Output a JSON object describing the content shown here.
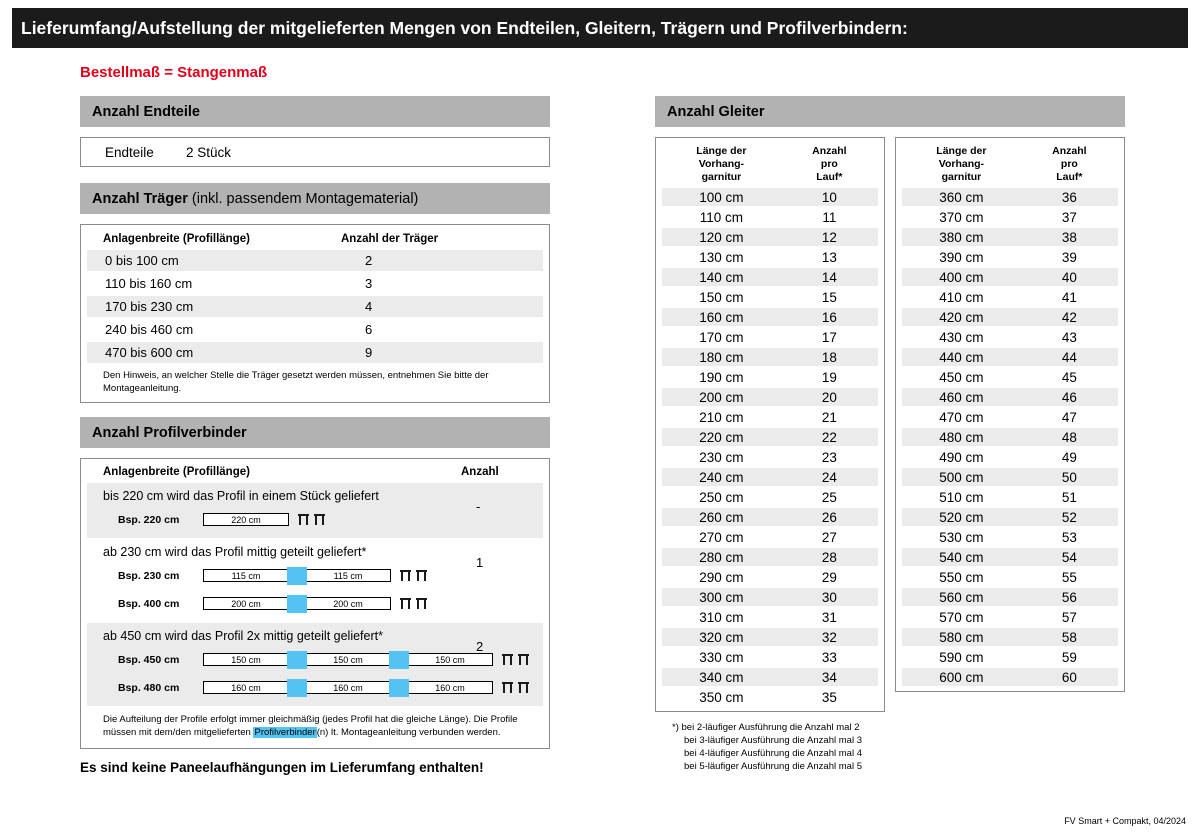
{
  "header": {
    "title": "Lieferumfang/Aufstellung der mitgelieferten Mengen von Endteilen, Gleitern, Trägern und Profilverbindern:"
  },
  "subtitle": "Bestellmaß = Stangenmaß",
  "colors": {
    "accent_red": "#e2001a",
    "section_bar_gray": "#b2b2b2",
    "stripe_gray": "#ebebeb",
    "connector_blue": "#54c3f1",
    "header_black": "#1b1b1b"
  },
  "endteile": {
    "section_title": "Anzahl Endteile",
    "label": "Endteile",
    "value": "2 Stück"
  },
  "traeger": {
    "title_bold": "Anzahl Träger",
    "title_rest": " (inkl. passendem Montagematerial)",
    "col_width": "Anlagenbreite (Profillänge)",
    "col_count": "Anzahl der Träger",
    "rows": [
      {
        "range": "0 bis 100 cm",
        "count": "2"
      },
      {
        "range": "110 bis 160 cm",
        "count": "3"
      },
      {
        "range": "170 bis 230 cm",
        "count": "4"
      },
      {
        "range": "240 bis 460 cm",
        "count": "6"
      },
      {
        "range": "470 bis 600 cm",
        "count": "9"
      }
    ],
    "note": "Den Hinweis, an welcher Stelle die Träger gesetzt werden müssen, entnehmen Sie bitte der Montageanleitung."
  },
  "profilverbinder": {
    "title": "Anzahl Profilverbinder",
    "col_width": "Anlagenbreite (Profillänge)",
    "col_count": "Anzahl",
    "sections": [
      {
        "text": "bis 220 cm wird das Profil in einem Stück geliefert",
        "anzahl": "-",
        "examples": [
          {
            "label": "Bsp. 220 cm",
            "segments": [
              "220 cm"
            ],
            "brackets": 2
          }
        ]
      },
      {
        "text": "ab 230 cm wird das Profil mittig geteilt geliefert*",
        "anzahl": "1",
        "examples": [
          {
            "label": "Bsp. 230 cm",
            "segments": [
              "115 cm",
              "115 cm"
            ],
            "brackets": 2
          },
          {
            "label": "Bsp. 400 cm",
            "segments": [
              "200 cm",
              "200 cm"
            ],
            "brackets": 2
          }
        ]
      },
      {
        "text": "ab 450 cm wird das Profil 2x mittig geteilt geliefert*",
        "anzahl": "2",
        "examples": [
          {
            "label": "Bsp. 450 cm",
            "segments": [
              "150 cm",
              "150 cm",
              "150 cm"
            ],
            "brackets": 2
          },
          {
            "label": "Bsp. 480 cm",
            "segments": [
              "160 cm",
              "160 cm",
              "160 cm"
            ],
            "brackets": 2
          }
        ]
      }
    ],
    "note_before": "Die Aufteilung der Profile erfolgt immer gleichmäßig (jedes Profil hat die gleiche Länge). Die Profile müssen mit dem/den mitgelieferten ",
    "note_highlight": "Profilverbinder",
    "note_after": "(n) lt. Montageanleitung verbunden werden."
  },
  "paneel_note": "Es sind keine Paneelaufhängungen im Lieferumfang enthalten!",
  "gleiter": {
    "section_title": "Anzahl Gleiter",
    "col_length": "Länge der\nVorhang-\ngarnitur",
    "col_count": "Anzahl\npro\nLauf*",
    "table1": [
      {
        "len": "100 cm",
        "n": "10"
      },
      {
        "len": "110 cm",
        "n": "11"
      },
      {
        "len": "120 cm",
        "n": "12"
      },
      {
        "len": "130 cm",
        "n": "13"
      },
      {
        "len": "140 cm",
        "n": "14"
      },
      {
        "len": "150 cm",
        "n": "15"
      },
      {
        "len": "160 cm",
        "n": "16"
      },
      {
        "len": "170 cm",
        "n": "17"
      },
      {
        "len": "180 cm",
        "n": "18"
      },
      {
        "len": "190 cm",
        "n": "19"
      },
      {
        "len": "200 cm",
        "n": "20"
      },
      {
        "len": "210 cm",
        "n": "21"
      },
      {
        "len": "220 cm",
        "n": "22"
      },
      {
        "len": "230 cm",
        "n": "23"
      },
      {
        "len": "240 cm",
        "n": "24"
      },
      {
        "len": "250 cm",
        "n": "25"
      },
      {
        "len": "260 cm",
        "n": "26"
      },
      {
        "len": "270 cm",
        "n": "27"
      },
      {
        "len": "280 cm",
        "n": "28"
      },
      {
        "len": "290 cm",
        "n": "29"
      },
      {
        "len": "300 cm",
        "n": "30"
      },
      {
        "len": "310 cm",
        "n": "31"
      },
      {
        "len": "320 cm",
        "n": "32"
      },
      {
        "len": "330 cm",
        "n": "33"
      },
      {
        "len": "340 cm",
        "n": "34"
      },
      {
        "len": "350 cm",
        "n": "35"
      }
    ],
    "table2": [
      {
        "len": "360 cm",
        "n": "36"
      },
      {
        "len": "370 cm",
        "n": "37"
      },
      {
        "len": "380 cm",
        "n": "38"
      },
      {
        "len": "390 cm",
        "n": "39"
      },
      {
        "len": "400 cm",
        "n": "40"
      },
      {
        "len": "410 cm",
        "n": "41"
      },
      {
        "len": "420 cm",
        "n": "42"
      },
      {
        "len": "430 cm",
        "n": "43"
      },
      {
        "len": "440 cm",
        "n": "44"
      },
      {
        "len": "450 cm",
        "n": "45"
      },
      {
        "len": "460 cm",
        "n": "46"
      },
      {
        "len": "470 cm",
        "n": "47"
      },
      {
        "len": "480 cm",
        "n": "48"
      },
      {
        "len": "490 cm",
        "n": "49"
      },
      {
        "len": "500 cm",
        "n": "50"
      },
      {
        "len": "510 cm",
        "n": "51"
      },
      {
        "len": "520 cm",
        "n": "52"
      },
      {
        "len": "530 cm",
        "n": "53"
      },
      {
        "len": "540 cm",
        "n": "54"
      },
      {
        "len": "550 cm",
        "n": "55"
      },
      {
        "len": "560 cm",
        "n": "56"
      },
      {
        "len": "570 cm",
        "n": "57"
      },
      {
        "len": "580 cm",
        "n": "58"
      },
      {
        "len": "590 cm",
        "n": "59"
      },
      {
        "len": "600 cm",
        "n": "60"
      }
    ],
    "footnotes": [
      "*) bei 2-läufiger Ausführung die Anzahl mal 2",
      "bei 3-läufiger Ausführung die Anzahl mal 3",
      "bei 4-läufiger Ausführung die Anzahl mal 4",
      "bei 5-läufiger Ausführung die Anzahl mal 5"
    ]
  },
  "footer": "FV Smart + Compakt, 04/2024"
}
